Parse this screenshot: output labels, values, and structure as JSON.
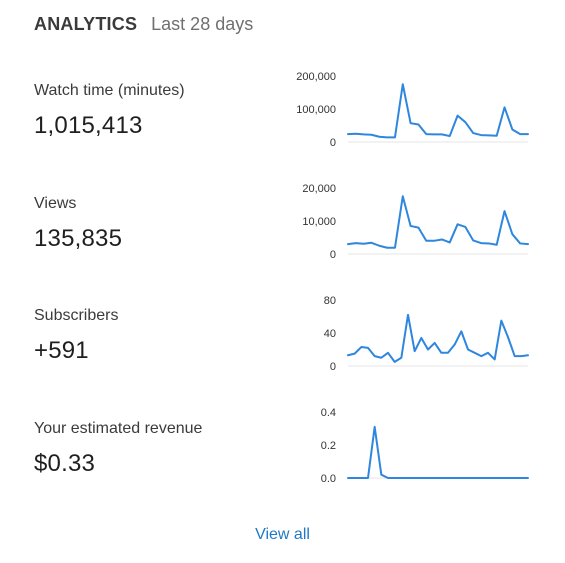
{
  "header": {
    "title": "ANALYTICS",
    "subtitle": "Last 28 days"
  },
  "metrics": [
    {
      "label": "Watch time (minutes)",
      "value": "1,015,413"
    },
    {
      "label": "Views",
      "value": "135,835"
    },
    {
      "label": "Subscribers",
      "value": "+591"
    },
    {
      "label": "Your estimated revenue",
      "value": "$0.33"
    }
  ],
  "footer": {
    "view_all_label": "View all"
  },
  "colors": {
    "line": "#2e86de",
    "link": "#1f78c8"
  },
  "chart_data": [
    {
      "type": "line",
      "title": "",
      "ylim": [
        0,
        200000
      ],
      "yticks": [
        0,
        100000,
        200000
      ],
      "ytick_labels": [
        "0",
        "100,000",
        "200,000"
      ],
      "series": [
        {
          "values": [
            24000,
            25000,
            23000,
            22000,
            16000,
            14000,
            14000,
            175000,
            57000,
            53000,
            24000,
            23000,
            23000,
            18000,
            80000,
            60000,
            27000,
            21000,
            20000,
            19000,
            105000,
            38000,
            24000,
            24000
          ]
        }
      ]
    },
    {
      "type": "line",
      "title": "",
      "ylim": [
        0,
        20000
      ],
      "yticks": [
        0,
        10000,
        20000
      ],
      "ytick_labels": [
        "0",
        "10,000",
        "20,000"
      ],
      "series": [
        {
          "values": [
            3000,
            3300,
            3100,
            3400,
            2500,
            1900,
            1900,
            17500,
            8500,
            8000,
            4000,
            4000,
            4400,
            3500,
            9000,
            8200,
            4100,
            3300,
            3200,
            2800,
            13000,
            6000,
            3200,
            3000
          ]
        }
      ]
    },
    {
      "type": "line",
      "title": "",
      "ylim": [
        0,
        80
      ],
      "yticks": [
        0,
        40,
        80
      ],
      "ytick_labels": [
        "0",
        "40",
        "80"
      ],
      "series": [
        {
          "values": [
            13,
            15,
            23,
            22,
            12,
            10,
            16,
            5,
            10,
            62,
            18,
            34,
            20,
            28,
            16,
            16,
            26,
            42,
            20,
            16,
            12,
            16,
            8,
            55,
            35,
            12,
            12,
            13
          ]
        }
      ]
    },
    {
      "type": "line",
      "title": "",
      "ylim": [
        0,
        0.4
      ],
      "yticks": [
        0,
        0.2,
        0.4
      ],
      "ytick_labels": [
        "0.0",
        "0.2",
        "0.4"
      ],
      "series": [
        {
          "values": [
            0,
            0,
            0,
            0,
            0.31,
            0.02,
            0,
            0,
            0,
            0,
            0,
            0,
            0,
            0,
            0,
            0,
            0,
            0,
            0,
            0,
            0,
            0,
            0,
            0,
            0,
            0,
            0,
            0
          ]
        }
      ]
    }
  ]
}
